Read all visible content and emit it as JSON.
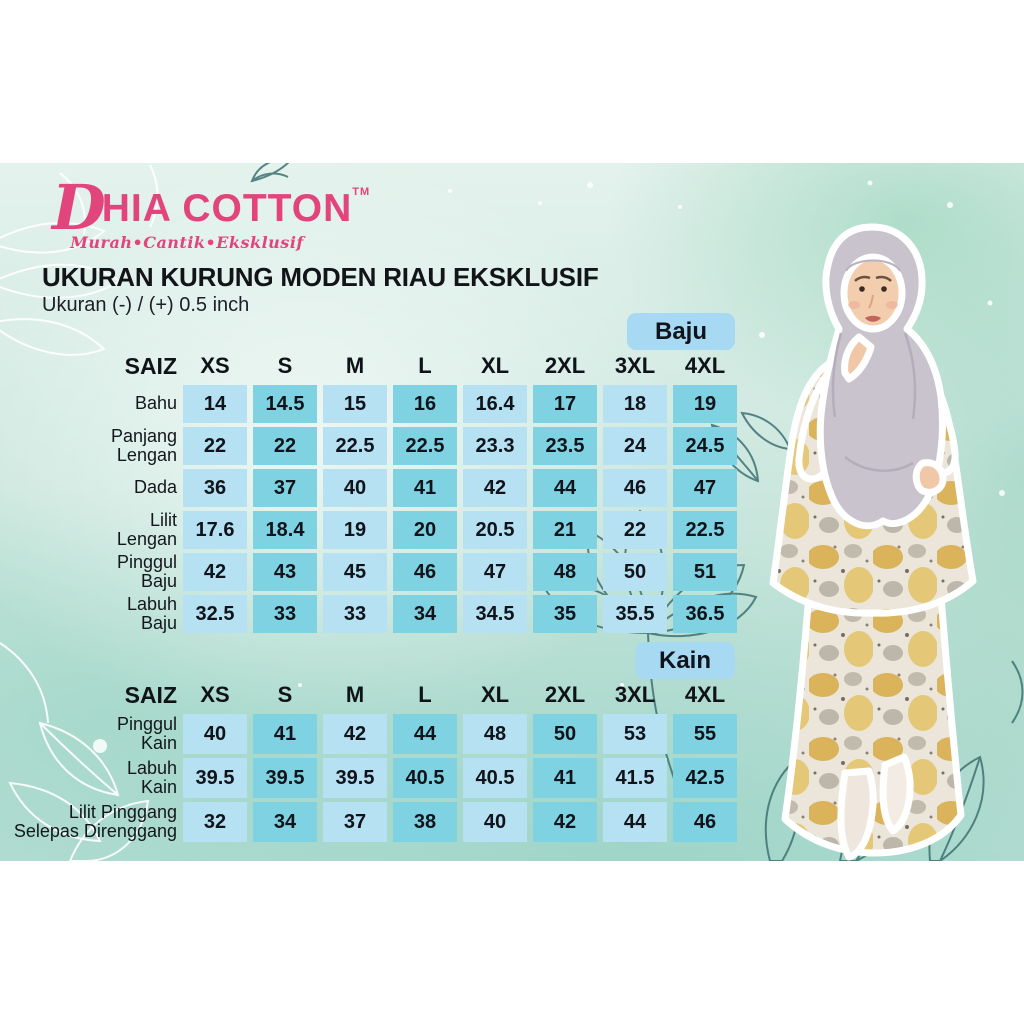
{
  "brand": {
    "initial": "D",
    "name_rest": "HIA COTTON",
    "tm": "TM",
    "tagline": "Murah•Cantik•Eksklusif"
  },
  "header": {
    "title": "UKURAN KURUNG MODEN RIAU EKSKLUSIF",
    "subtitle": "Ukuran (-) / (+) 0.5 inch"
  },
  "tables": [
    {
      "tag": "Baju",
      "size_header": "SAIZ",
      "sizes": [
        "XS",
        "S",
        "M",
        "L",
        "XL",
        "2XL",
        "3XL",
        "4XL"
      ],
      "rows": [
        {
          "label": "Bahu",
          "values": [
            "14",
            "14.5",
            "15",
            "16",
            "16.4",
            "17",
            "18",
            "19"
          ]
        },
        {
          "label": "Panjang\nLengan",
          "values": [
            "22",
            "22",
            "22.5",
            "22.5",
            "23.3",
            "23.5",
            "24",
            "24.5"
          ]
        },
        {
          "label": "Dada",
          "values": [
            "36",
            "37",
            "40",
            "41",
            "42",
            "44",
            "46",
            "47"
          ]
        },
        {
          "label": "Lilit\nLengan",
          "values": [
            "17.6",
            "18.4",
            "19",
            "20",
            "20.5",
            "21",
            "22",
            "22.5"
          ]
        },
        {
          "label": "Pinggul\nBaju",
          "values": [
            "42",
            "43",
            "45",
            "46",
            "47",
            "48",
            "50",
            "51"
          ]
        },
        {
          "label": "Labuh\nBaju",
          "values": [
            "32.5",
            "33",
            "33",
            "34",
            "34.5",
            "35",
            "35.5",
            "36.5"
          ]
        }
      ]
    },
    {
      "tag": "Kain",
      "size_header": "SAIZ",
      "sizes": [
        "XS",
        "S",
        "M",
        "L",
        "XL",
        "2XL",
        "3XL",
        "4XL"
      ],
      "rows": [
        {
          "label": "Pinggul\nKain",
          "values": [
            "40",
            "41",
            "42",
            "44",
            "48",
            "50",
            "53",
            "55"
          ]
        },
        {
          "label": "Labuh\nKain",
          "values": [
            "39.5",
            "39.5",
            "39.5",
            "40.5",
            "40.5",
            "41",
            "41.5",
            "42.5"
          ]
        },
        {
          "label": "Lilit Pinggang\nSelepas Direnggang",
          "values": [
            "32",
            "34",
            "37",
            "38",
            "40",
            "42",
            "44",
            "46"
          ]
        }
      ]
    }
  ],
  "colors": {
    "brand_pink": "#e2447c",
    "cell_light": "#b5e1f3",
    "cell_dark": "#7ed2e2",
    "tag_bg": "#a7d9f3"
  }
}
